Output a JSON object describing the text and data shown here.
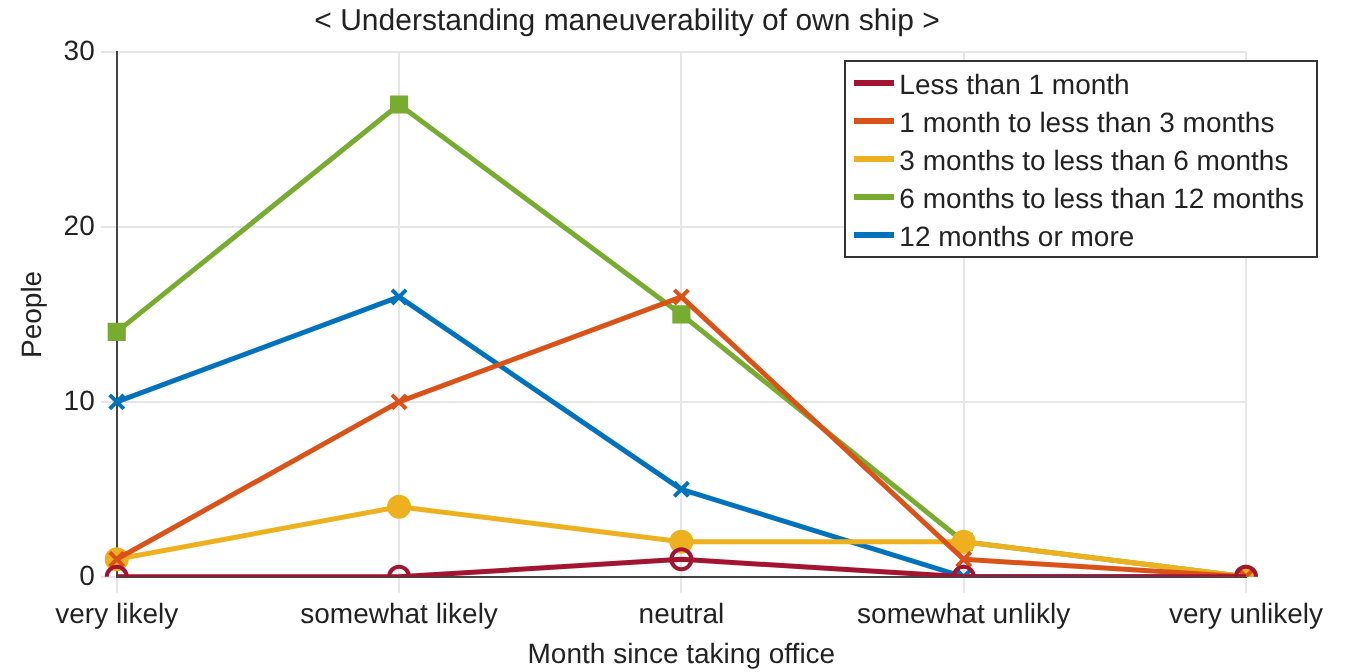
{
  "chart_data": {
    "type": "line",
    "title": "< Understanding maneuverability of own ship >",
    "xlabel": "Month since taking office",
    "ylabel": "People",
    "categories": [
      "very likely",
      "somewhat likely",
      "neutral",
      "somewhat unlikly",
      "very unlikely"
    ],
    "series": [
      {
        "name": "Less than 1 month",
        "color": "#a2142f",
        "marker": "circle",
        "values": [
          0,
          0,
          1,
          0,
          0
        ]
      },
      {
        "name": "1 month to less than 3 months",
        "color": "#d95319",
        "marker": "cross",
        "values": [
          1,
          10,
          16,
          1,
          0
        ]
      },
      {
        "name": "3 months to less than 6 months",
        "color": "#edb120",
        "marker": "circle",
        "values": [
          1,
          4,
          2,
          2,
          0
        ]
      },
      {
        "name": "6 months to less than 12 months",
        "color": "#77ac30",
        "marker": "square",
        "values": [
          14,
          27,
          15,
          2,
          0
        ]
      },
      {
        "name": "12 months or more",
        "color": "#0072bd",
        "marker": "cross",
        "values": [
          10,
          16,
          5,
          0,
          0
        ]
      }
    ],
    "ylim": [
      0,
      30
    ],
    "yticks": [
      0,
      10,
      20,
      30
    ],
    "grid": true,
    "legend": "top right",
    "line_style": "solid"
  }
}
